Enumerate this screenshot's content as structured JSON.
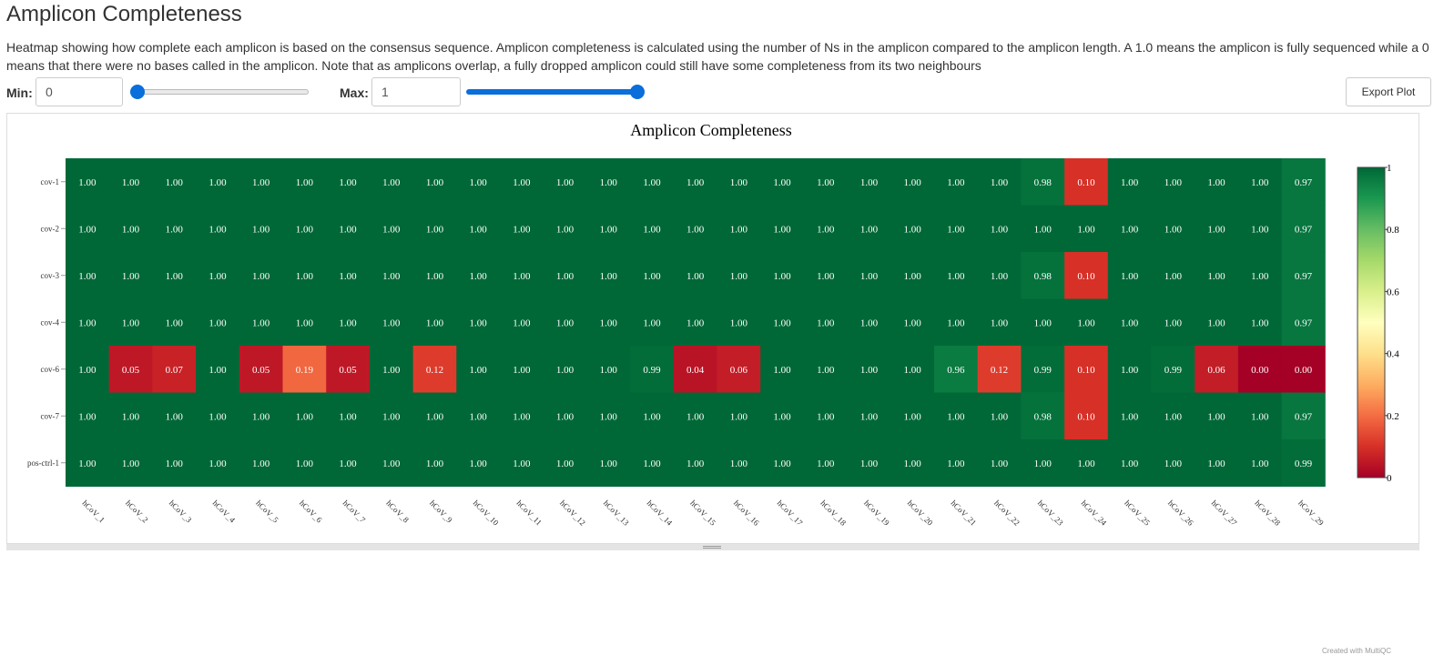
{
  "page": {
    "title": "Amplicon Completeness",
    "description": "Heatmap showing how complete each amplicon is based on the consensus sequence. Amplicon completeness is calculated using the number of Ns in the amplicon compared to the amplicon length. A 1.0 means the amplicon is fully sequenced while a 0 means that there were no bases called in the amplicon. Note that as amplicons overlap, a fully dropped amplicon could still have some completeness from its two neighbours"
  },
  "controls": {
    "min_label": "Min:",
    "min_value": "0",
    "min_slider": 0,
    "max_label": "Max:",
    "max_value": "1",
    "max_slider": 1,
    "export_label": "Export Plot"
  },
  "footer": {
    "credit": "Created with MultiQC"
  },
  "chart_data": {
    "type": "heatmap",
    "title": "Amplicon Completeness",
    "x_categories": [
      "hCoV_1",
      "hCoV_2",
      "hCoV_3",
      "hCoV_4",
      "hCoV_5",
      "hCoV_6",
      "hCoV_7",
      "hCoV_8",
      "hCoV_9",
      "hCoV_10",
      "hCoV_11",
      "hCoV_12",
      "hCoV_13",
      "hCoV_14",
      "hCoV_15",
      "hCoV_16",
      "hCoV_17",
      "hCoV_18",
      "hCoV_19",
      "hCoV_20",
      "hCoV_21",
      "hCoV_22",
      "hCoV_23",
      "hCoV_24",
      "hCoV_25",
      "hCoV_26",
      "hCoV_27",
      "hCoV_28",
      "hCoV_29"
    ],
    "y_categories": [
      "cov-1",
      "cov-2",
      "cov-3",
      "cov-4",
      "cov-6",
      "cov-7",
      "pos-ctrl-1"
    ],
    "values": [
      [
        1.0,
        1.0,
        1.0,
        1.0,
        1.0,
        1.0,
        1.0,
        1.0,
        1.0,
        1.0,
        1.0,
        1.0,
        1.0,
        1.0,
        1.0,
        1.0,
        1.0,
        1.0,
        1.0,
        1.0,
        1.0,
        1.0,
        0.98,
        0.1,
        1.0,
        1.0,
        1.0,
        1.0,
        0.97
      ],
      [
        1.0,
        1.0,
        1.0,
        1.0,
        1.0,
        1.0,
        1.0,
        1.0,
        1.0,
        1.0,
        1.0,
        1.0,
        1.0,
        1.0,
        1.0,
        1.0,
        1.0,
        1.0,
        1.0,
        1.0,
        1.0,
        1.0,
        1.0,
        1.0,
        1.0,
        1.0,
        1.0,
        1.0,
        0.97
      ],
      [
        1.0,
        1.0,
        1.0,
        1.0,
        1.0,
        1.0,
        1.0,
        1.0,
        1.0,
        1.0,
        1.0,
        1.0,
        1.0,
        1.0,
        1.0,
        1.0,
        1.0,
        1.0,
        1.0,
        1.0,
        1.0,
        1.0,
        0.98,
        0.1,
        1.0,
        1.0,
        1.0,
        1.0,
        0.97
      ],
      [
        1.0,
        1.0,
        1.0,
        1.0,
        1.0,
        1.0,
        1.0,
        1.0,
        1.0,
        1.0,
        1.0,
        1.0,
        1.0,
        1.0,
        1.0,
        1.0,
        1.0,
        1.0,
        1.0,
        1.0,
        1.0,
        1.0,
        1.0,
        1.0,
        1.0,
        1.0,
        1.0,
        1.0,
        0.97
      ],
      [
        1.0,
        0.05,
        0.07,
        1.0,
        0.05,
        0.19,
        0.05,
        1.0,
        0.12,
        1.0,
        1.0,
        1.0,
        1.0,
        0.99,
        0.04,
        0.06,
        1.0,
        1.0,
        1.0,
        1.0,
        0.96,
        0.12,
        0.99,
        0.1,
        1.0,
        0.99,
        0.06,
        0.0,
        0.0
      ],
      [
        1.0,
        1.0,
        1.0,
        1.0,
        1.0,
        1.0,
        1.0,
        1.0,
        1.0,
        1.0,
        1.0,
        1.0,
        1.0,
        1.0,
        1.0,
        1.0,
        1.0,
        1.0,
        1.0,
        1.0,
        1.0,
        1.0,
        0.98,
        0.1,
        1.0,
        1.0,
        1.0,
        1.0,
        0.97
      ],
      [
        1.0,
        1.0,
        1.0,
        1.0,
        1.0,
        1.0,
        1.0,
        1.0,
        1.0,
        1.0,
        1.0,
        1.0,
        1.0,
        1.0,
        1.0,
        1.0,
        1.0,
        1.0,
        1.0,
        1.0,
        1.0,
        1.0,
        1.0,
        1.0,
        1.0,
        1.0,
        1.0,
        1.0,
        0.99
      ]
    ],
    "value_range": [
      0,
      1
    ],
    "colorbar_ticks": [
      "0",
      "0.2",
      "0.4",
      "0.6",
      "0.8",
      "1"
    ],
    "colorscale": [
      "#a50026",
      "#d73027",
      "#f46d43",
      "#fdae61",
      "#fee08b",
      "#ffffbf",
      "#d9ef8b",
      "#a6d96a",
      "#66bd63",
      "#1a9850",
      "#006837"
    ]
  }
}
